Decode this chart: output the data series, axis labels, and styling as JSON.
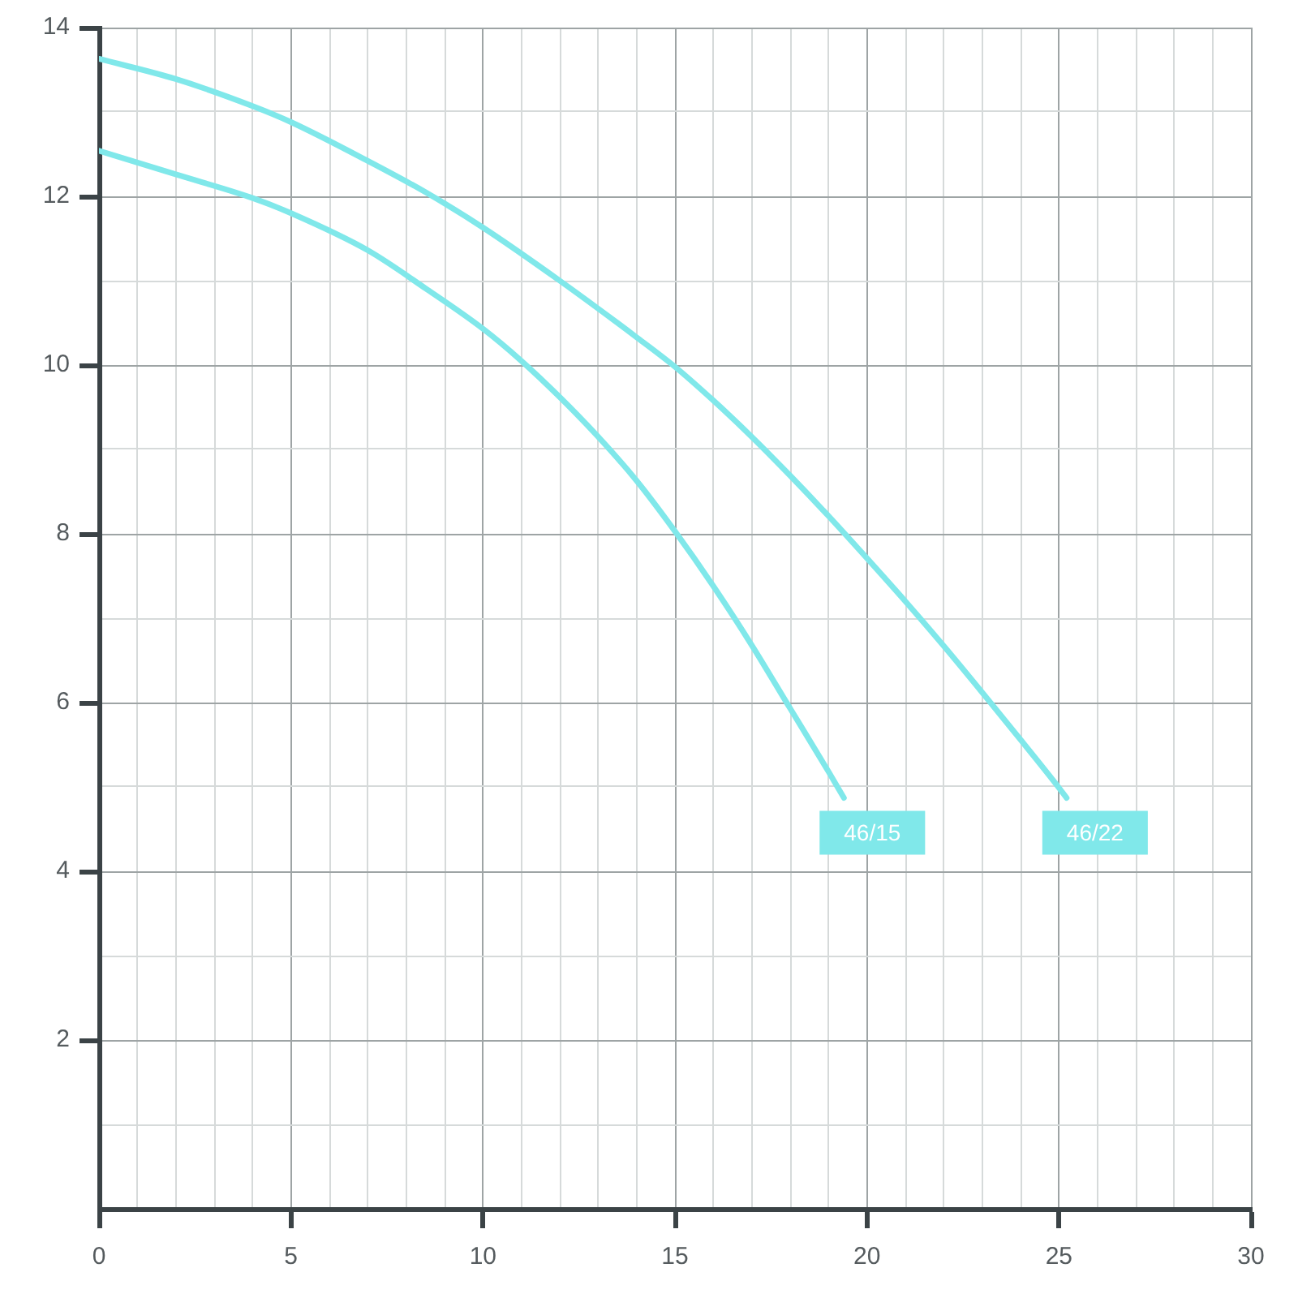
{
  "chart_data": {
    "type": "line",
    "xlim": [
      0,
      30
    ],
    "xticks": [
      0,
      {
        "value": 1,
        "label": null
      },
      {
        "value": 2,
        "label": null
      },
      {
        "value": 3,
        "label": null
      },
      {
        "value": 4,
        "label": null
      },
      5,
      {
        "value": 6,
        "label": null
      },
      {
        "value": 7,
        "label": null
      },
      {
        "value": 8,
        "label": null
      },
      {
        "value": 9,
        "label": null
      },
      10,
      {
        "value": 11,
        "label": null
      },
      {
        "value": 12,
        "label": null
      },
      {
        "value": 13,
        "label": null
      },
      {
        "value": 14,
        "label": null
      },
      15,
      {
        "value": 16,
        "label": null
      },
      {
        "value": 17,
        "label": null
      },
      {
        "value": 18,
        "label": null
      },
      {
        "value": 19,
        "label": null
      },
      20,
      {
        "value": 21,
        "label": null
      },
      {
        "value": 22,
        "label": null
      },
      {
        "value": 23,
        "label": null
      },
      {
        "value": 24,
        "label": null
      },
      25,
      {
        "value": 26,
        "label": null
      },
      {
        "value": 27,
        "label": null
      },
      {
        "value": 28,
        "label": null
      },
      {
        "value": 29,
        "label": null
      },
      30
    ],
    "ylim": [
      0,
      14
    ],
    "yticks": [
      {
        "value": 0,
        "label": null
      },
      {
        "value": 1,
        "label": null
      },
      2,
      {
        "value": 3,
        "label": null
      },
      4,
      {
        "value": 5,
        "label": null
      },
      6,
      {
        "value": 7,
        "label": null
      },
      8,
      {
        "value": 9,
        "label": null
      },
      10,
      {
        "value": 11,
        "label": null
      },
      12,
      {
        "value": 13,
        "label": null
      },
      14
    ],
    "grid": true,
    "marker": "none",
    "line_style": "solid",
    "series": [
      {
        "name": "46/15",
        "color": "#80e8ea",
        "x": [
          0,
          2,
          4,
          5,
          7,
          8.5,
          10,
          11,
          12,
          13,
          14,
          15,
          16,
          17,
          18,
          19,
          19.4
        ],
        "values": [
          12.54,
          12.26,
          11.98,
          11.8,
          11.36,
          10.91,
          10.43,
          10.05,
          9.62,
          9.15,
          8.63,
          8.03,
          7.38,
          6.68,
          5.93,
          5.18,
          4.87
        ]
      },
      {
        "name": "46/22",
        "color": "#80e8ea",
        "x": [
          0,
          2,
          4,
          5,
          7,
          8.5,
          10,
          12,
          14,
          15,
          16,
          17,
          18,
          19,
          20,
          21,
          22,
          23,
          24,
          25,
          25.2
        ],
        "values": [
          13.63,
          13.39,
          13.07,
          12.88,
          12.42,
          12.05,
          11.63,
          11.0,
          10.33,
          9.98,
          9.58,
          9.15,
          8.69,
          8.21,
          7.71,
          7.2,
          6.67,
          6.12,
          5.56,
          4.99,
          4.87
        ]
      }
    ]
  }
}
